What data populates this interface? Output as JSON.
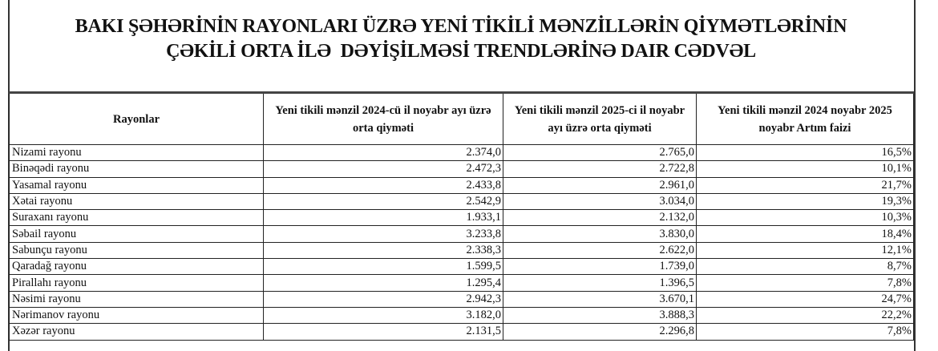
{
  "title": {
    "line1": "BAKI ŞƏHƏRİNİN RAYONLARI ÜZRƏ YENİ TİKİLİ MƏNZİLLƏRİN QİYMƏTLƏRİNİN",
    "line2": "ÇƏKİLİ ORTA İLƏ  DƏYİŞİLMƏSİ TRENDLƏRİNƏ DAIR CƏDVƏL"
  },
  "table": {
    "headers": [
      "Rayonlar",
      "Yeni tikili mənzil 2024-cü il noyabr ayı üzrə orta qiyməti",
      "Yeni tikili mənzil 2025-ci il noyabr ayı üzrə orta qiyməti",
      "Yeni tikili mənzil 2024 noyabr 2025 noyabr Artım faizi"
    ],
    "rows": [
      [
        "Nizami rayonu",
        "2.374,0",
        "2.765,0",
        "16,5%"
      ],
      [
        "Binəqədi rayonu",
        "2.472,3",
        "2.722,8",
        "10,1%"
      ],
      [
        "Yasamal rayonu",
        "2.433,8",
        "2.961,0",
        "21,7%"
      ],
      [
        "Xətai rayonu",
        "2.542,9",
        "3.034,0",
        "19,3%"
      ],
      [
        "Suraxanı rayonu",
        "1.933,1",
        "2.132,0",
        "10,3%"
      ],
      [
        "Səbail rayonu",
        "3.233,8",
        "3.830,0",
        "18,4%"
      ],
      [
        "Sabunçu rayonu",
        "2.338,3",
        "2.622,0",
        "12,1%"
      ],
      [
        "Qaradağ rayonu",
        "1.599,5",
        "1.739,0",
        "8,7%"
      ],
      [
        "Pirallahı rayonu",
        "1.295,4",
        "1.396,5",
        "7,8%"
      ],
      [
        "Nəsimi rayonu",
        "2.942,3",
        "3.670,1",
        "24,7%"
      ],
      [
        "Nərimanov rayonu",
        "3.182,0",
        "3.888,3",
        "22,2%"
      ],
      [
        "Xəzər rayonu",
        "2.131,5",
        "2.296,8",
        "7,8%"
      ]
    ]
  }
}
